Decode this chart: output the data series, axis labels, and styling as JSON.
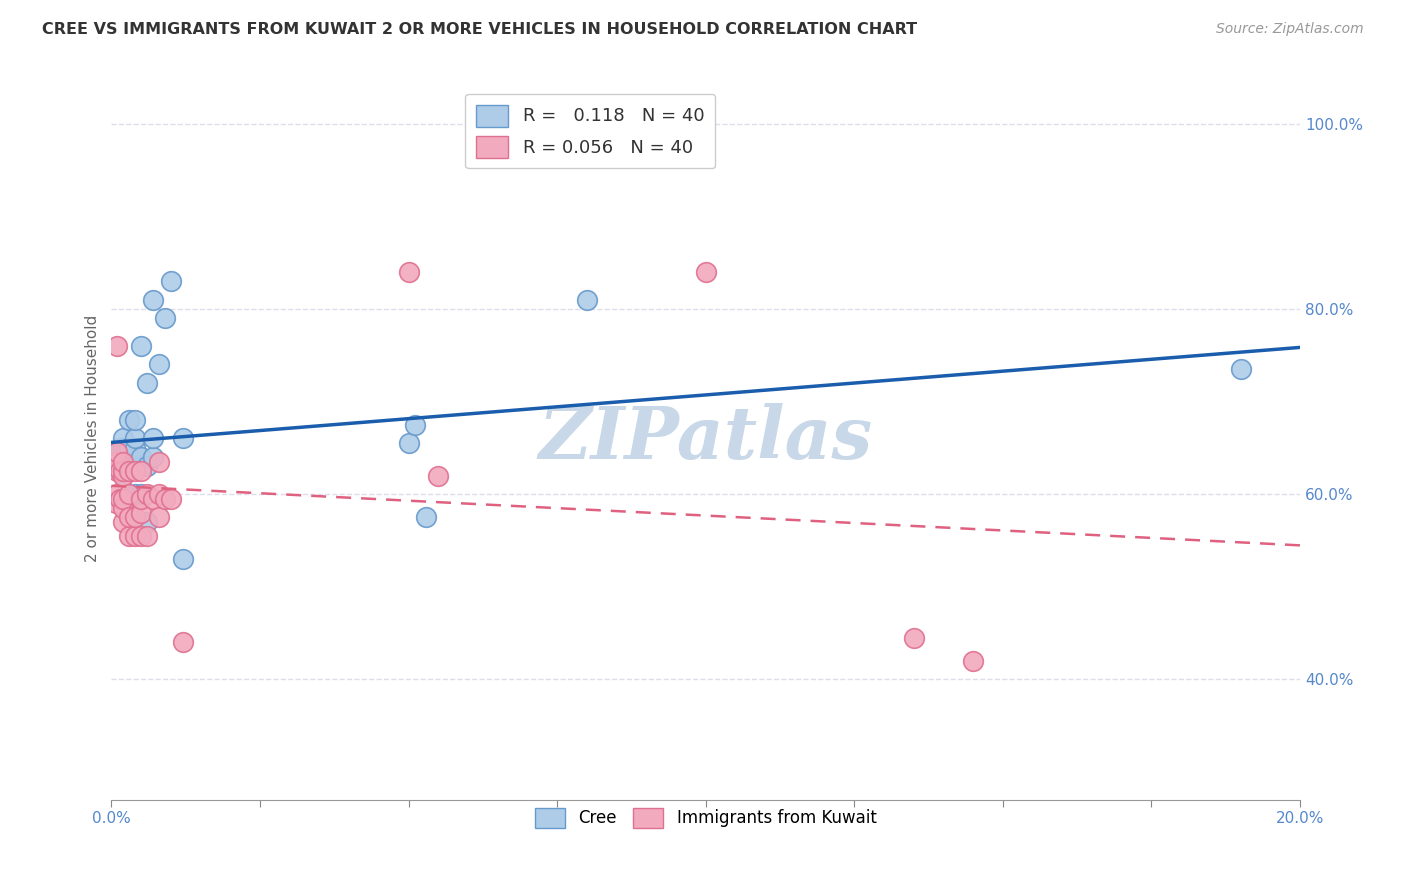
{
  "title": "CREE VS IMMIGRANTS FROM KUWAIT 2 OR MORE VEHICLES IN HOUSEHOLD CORRELATION CHART",
  "source": "Source: ZipAtlas.com",
  "ylabel_label": "2 or more Vehicles in Household",
  "cree_R": 0.118,
  "cree_N": 40,
  "kuwait_R": 0.056,
  "kuwait_N": 40,
  "cree_color": "#AECCE8",
  "kuwait_color": "#F2AABE",
  "cree_edge_color": "#6699CC",
  "kuwait_edge_color": "#E07090",
  "cree_line_color": "#1A5DAD",
  "kuwait_line_color": "#E06080",
  "cree_x": [
    0.0008,
    0.001,
    0.0015,
    0.0015,
    0.002,
    0.002,
    0.002,
    0.002,
    0.0025,
    0.0025,
    0.003,
    0.003,
    0.003,
    0.003,
    0.003,
    0.0035,
    0.004,
    0.004,
    0.004,
    0.004,
    0.004,
    0.005,
    0.005,
    0.005,
    0.006,
    0.006,
    0.006,
    0.007,
    0.007,
    0.007,
    0.008,
    0.009,
    0.01,
    0.012,
    0.012,
    0.05,
    0.051,
    0.053,
    0.08,
    0.19
  ],
  "cree_y": [
    0.645,
    0.645,
    0.63,
    0.65,
    0.62,
    0.635,
    0.65,
    0.66,
    0.63,
    0.645,
    0.63,
    0.635,
    0.645,
    0.65,
    0.68,
    0.63,
    0.6,
    0.63,
    0.65,
    0.66,
    0.68,
    0.6,
    0.64,
    0.76,
    0.57,
    0.63,
    0.72,
    0.64,
    0.66,
    0.81,
    0.74,
    0.79,
    0.83,
    0.53,
    0.66,
    0.655,
    0.675,
    0.575,
    0.81,
    0.735
  ],
  "kuwait_x": [
    0.0005,
    0.0008,
    0.001,
    0.001,
    0.001,
    0.001,
    0.001,
    0.0015,
    0.0015,
    0.002,
    0.002,
    0.002,
    0.002,
    0.002,
    0.002,
    0.003,
    0.003,
    0.003,
    0.003,
    0.004,
    0.004,
    0.004,
    0.005,
    0.005,
    0.005,
    0.005,
    0.006,
    0.006,
    0.007,
    0.008,
    0.008,
    0.008,
    0.009,
    0.01,
    0.012,
    0.05,
    0.055,
    0.1,
    0.135,
    0.145
  ],
  "kuwait_y": [
    0.63,
    0.59,
    0.6,
    0.625,
    0.635,
    0.645,
    0.76,
    0.595,
    0.625,
    0.57,
    0.585,
    0.595,
    0.62,
    0.625,
    0.635,
    0.555,
    0.575,
    0.6,
    0.625,
    0.555,
    0.575,
    0.625,
    0.555,
    0.58,
    0.595,
    0.625,
    0.555,
    0.6,
    0.595,
    0.575,
    0.6,
    0.635,
    0.595,
    0.595,
    0.44,
    0.84,
    0.62,
    0.84,
    0.445,
    0.42
  ],
  "xlim": [
    0.0,
    0.2
  ],
  "ylim": [
    0.27,
    1.05
  ],
  "xtick_positions": [
    0.0,
    0.025,
    0.05,
    0.075,
    0.1,
    0.125,
    0.15,
    0.175,
    0.2
  ],
  "xtick_labels_show": {
    "0.0": "0.0%",
    "0.20": "20.0%"
  },
  "ytick_positions": [
    0.4,
    0.6,
    0.8,
    1.0
  ],
  "ytick_labels": [
    "40.0%",
    "60.0%",
    "80.0%",
    "100.0%"
  ],
  "figsize": [
    14.06,
    8.92
  ],
  "dpi": 100,
  "background_color": "#FFFFFF",
  "watermark": "ZIPatlas",
  "watermark_color": "#C8D8E8",
  "grid_color": "#DDDDEE",
  "grid_style": "--"
}
